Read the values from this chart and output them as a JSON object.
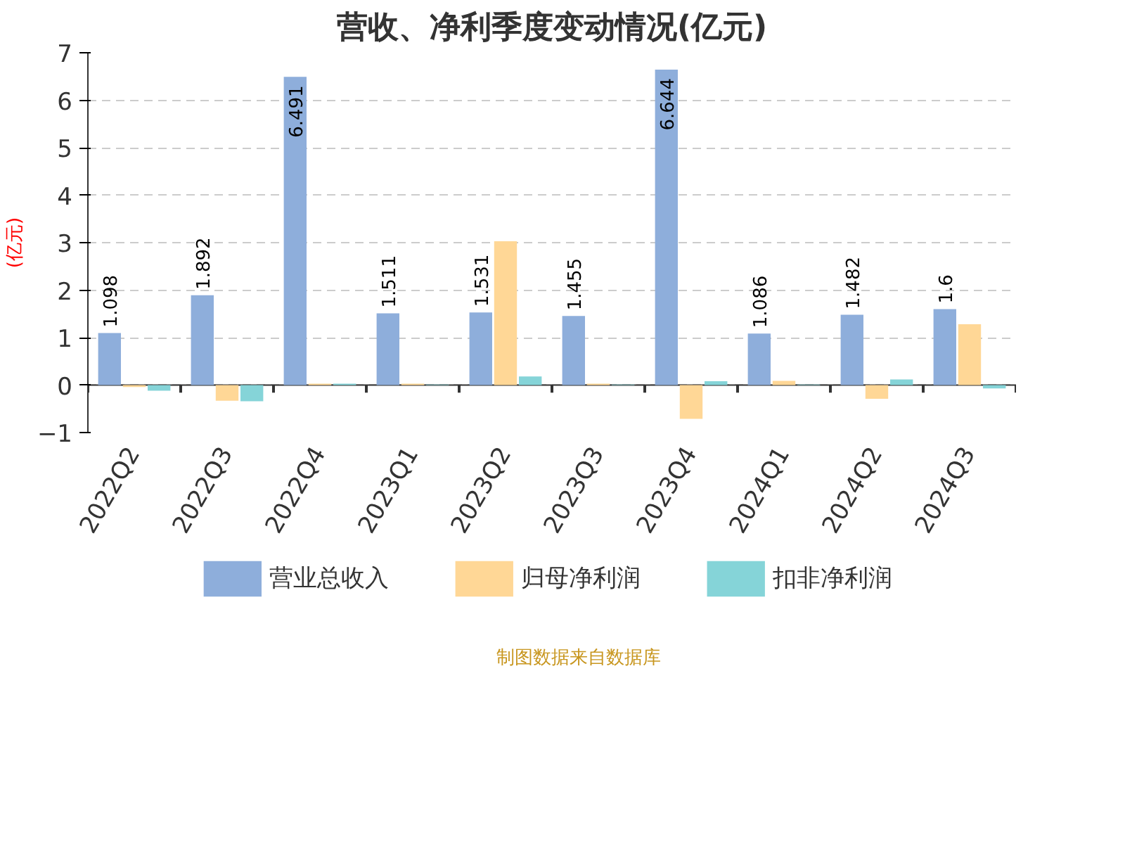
{
  "chart_data": {
    "type": "bar",
    "title": "营收、净利季度变动情况(亿元)",
    "ylabel": "(亿元)",
    "categories": [
      "2022Q2",
      "2022Q3",
      "2022Q4",
      "2023Q1",
      "2023Q2",
      "2023Q3",
      "2023Q4",
      "2024Q1",
      "2024Q2",
      "2024Q3"
    ],
    "series": [
      {
        "name": "营业总收入",
        "color": "#8eaedb",
        "values": [
          1.098,
          1.892,
          6.491,
          1.511,
          1.531,
          1.455,
          6.644,
          1.086,
          1.482,
          1.6
        ],
        "value_labels": [
          "1.098",
          "1.892",
          "6.491",
          "1.511",
          "1.531",
          "1.455",
          "6.644",
          "1.086",
          "1.482",
          "1.6"
        ]
      },
      {
        "name": "归母净利润",
        "color": "#ffd796",
        "values": [
          -0.04,
          -0.33,
          0.03,
          0.03,
          3.03,
          0.03,
          -0.71,
          0.09,
          -0.29,
          1.28
        ]
      },
      {
        "name": "扣非净利润",
        "color": "#85d4d8",
        "values": [
          -0.12,
          -0.34,
          0.03,
          0.01,
          0.18,
          0.01,
          0.08,
          0.01,
          0.12,
          -0.07
        ]
      }
    ],
    "ylim": [
      -1,
      7
    ],
    "yticks": [
      -1,
      0,
      1,
      2,
      3,
      4,
      5,
      6,
      7
    ],
    "grid": "y",
    "legend": "bottom",
    "annotations": [
      "制图数据来自数据库"
    ]
  }
}
